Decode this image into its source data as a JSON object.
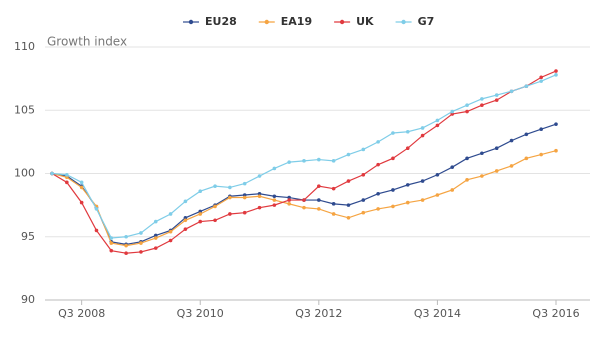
{
  "chart_data": {
    "type": "line",
    "ylabel": "Growth index",
    "categories": [
      null,
      null,
      "Q3 2008",
      null,
      null,
      null,
      null,
      null,
      null,
      null,
      "Q3 2010",
      null,
      null,
      null,
      null,
      null,
      null,
      null,
      "Q3 2012",
      null,
      null,
      null,
      null,
      null,
      null,
      null,
      "Q3 2014",
      null,
      null,
      null,
      null,
      null,
      null,
      null,
      "Q3 2016"
    ],
    "series": [
      {
        "name": "EU28",
        "color": "#2f4b8f",
        "values": [
          100,
          99.8,
          99.0,
          97.3,
          94.6,
          94.4,
          94.6,
          95.1,
          95.5,
          96.5,
          97.0,
          97.5,
          98.2,
          98.3,
          98.4,
          98.2,
          98.1,
          97.9,
          97.9,
          97.6,
          97.5,
          97.9,
          98.4,
          98.7,
          99.1,
          99.4,
          99.9,
          100.5,
          101.2,
          101.6,
          102.0,
          102.6,
          103.1,
          103.5,
          103.9
        ]
      },
      {
        "name": "EA19",
        "color": "#f5a442",
        "values": [
          100,
          99.7,
          98.9,
          97.4,
          94.5,
          94.3,
          94.5,
          94.9,
          95.4,
          96.3,
          96.8,
          97.4,
          98.1,
          98.1,
          98.2,
          97.9,
          97.6,
          97.3,
          97.2,
          96.8,
          96.5,
          96.9,
          97.2,
          97.4,
          97.7,
          97.9,
          98.3,
          98.7,
          99.5,
          99.8,
          100.2,
          100.6,
          101.2,
          101.5,
          101.8
        ]
      },
      {
        "name": "UK",
        "color": "#e0393e",
        "values": [
          100,
          99.3,
          97.7,
          95.5,
          93.9,
          93.7,
          93.8,
          94.1,
          94.7,
          95.6,
          96.2,
          96.3,
          96.8,
          96.9,
          97.3,
          97.5,
          97.9,
          97.9,
          99.0,
          98.8,
          99.4,
          99.9,
          100.7,
          101.2,
          102.0,
          103.0,
          103.8,
          104.7,
          104.9,
          105.4,
          105.8,
          106.5,
          106.9,
          107.6,
          108.1
        ]
      },
      {
        "name": "G7",
        "color": "#7fcde8",
        "values": [
          100,
          99.9,
          99.3,
          97.2,
          94.9,
          95.0,
          95.3,
          96.2,
          96.8,
          97.8,
          98.6,
          99.0,
          98.9,
          99.2,
          99.8,
          100.4,
          100.9,
          101.0,
          101.1,
          101.0,
          101.5,
          101.9,
          102.5,
          103.2,
          103.3,
          103.6,
          104.2,
          104.9,
          105.4,
          105.9,
          106.2,
          106.5,
          106.9,
          107.3,
          107.8
        ]
      }
    ],
    "ylim": [
      90,
      110
    ],
    "yticks": [
      90,
      95,
      100,
      105,
      110
    ],
    "grid": true
  }
}
